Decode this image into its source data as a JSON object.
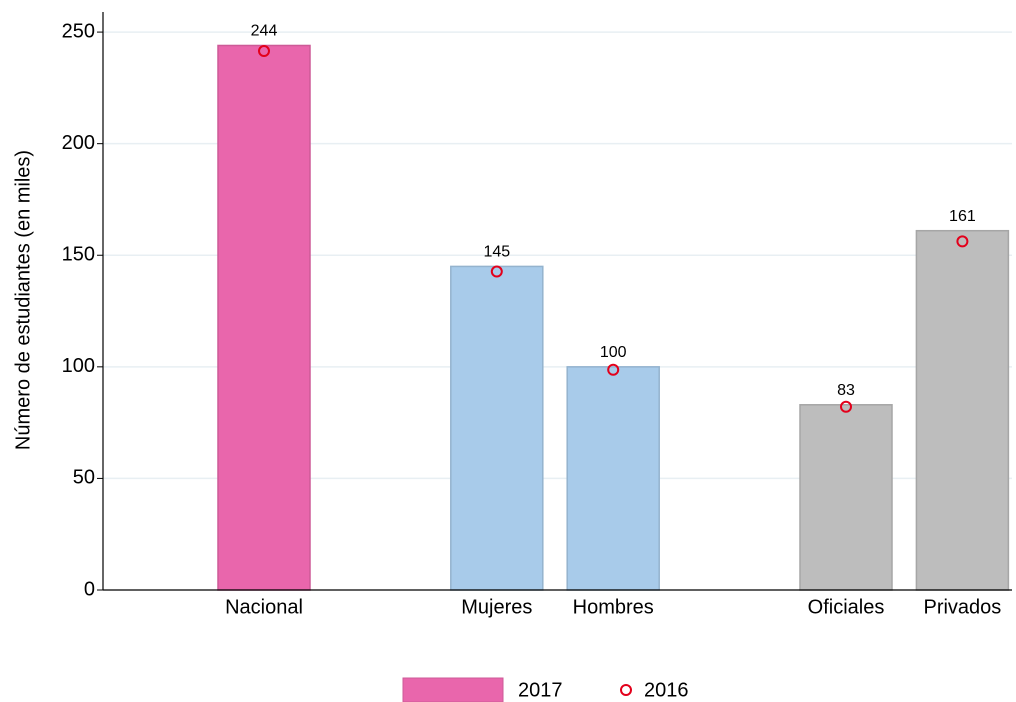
{
  "chart_data": {
    "type": "bar",
    "y_label": "Número de estudiantes (en miles)",
    "categories": [
      "Nacional",
      "Mujeres",
      "Hombres",
      "Oficiales",
      "Privados"
    ],
    "series": [
      {
        "name": "2017",
        "color": "#e966ac",
        "colors": [
          "#e966ac",
          "#a8cbea",
          "#a8cbea",
          "#bdbdbd",
          "#bdbdbd"
        ],
        "values": [
          244,
          145,
          100,
          83,
          161
        ]
      },
      {
        "name": "2016",
        "color": "#e3001b",
        "marker": "circle",
        "values": [
          241.5,
          142.7,
          98.7,
          82.1,
          156.2
        ]
      }
    ],
    "ylim": [
      0,
      259
    ],
    "yticks": [
      0,
      50,
      100,
      150,
      200,
      250
    ],
    "grid": true
  }
}
